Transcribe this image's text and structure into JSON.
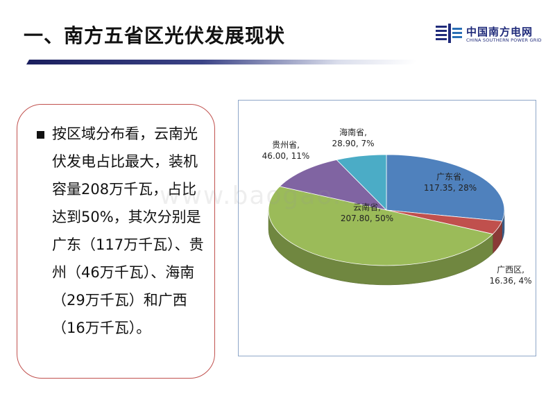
{
  "header": {
    "title": "一、南方五省区光伏发展现状",
    "logo_name": "中国南方电网",
    "logo_subtitle": "CHINA SOUTHERN POWER GRID"
  },
  "colors": {
    "accent": "#c0504d",
    "title_bar": "#1b1f5e",
    "guangdong": "#4f81bd",
    "guangxi": "#c0504d",
    "yunnan": "#9bbb59",
    "guizhou": "#8064a2",
    "hainan": "#4bacc6"
  },
  "text_panel": {
    "body": "按区域分布看，云南光伏发电占比最大，装机容量208万千瓦，占比达到50%，其次分别是广东（117万千瓦）、贵州（46万千瓦）、海南（29万千瓦）和广西（16万千瓦）。"
  },
  "chart_data": {
    "type": "pie",
    "style": "3d",
    "slices": [
      {
        "label": "广东省",
        "value": 117.35,
        "percent": "28%",
        "color": "#4f81bd",
        "data_label": "广东省,\n117.35, 28%"
      },
      {
        "label": "广西区",
        "value": 16.36,
        "percent": "4%",
        "color": "#c0504d",
        "data_label": "广西区,\n16.36, 4%"
      },
      {
        "label": "云南省",
        "value": 207.8,
        "percent": "50%",
        "color": "#9bbb59",
        "data_label": "云南省,\n207.80, 50%"
      },
      {
        "label": "贵州省",
        "value": 46.0,
        "percent": "11%",
        "color": "#8064a2",
        "data_label": "贵州省,\n46.00, 11%"
      },
      {
        "label": "海南省",
        "value": 28.9,
        "percent": "7%",
        "color": "#4bacc6",
        "data_label": "海南省,\n28.90, 7%"
      }
    ]
  },
  "watermark": "www.baogao..."
}
